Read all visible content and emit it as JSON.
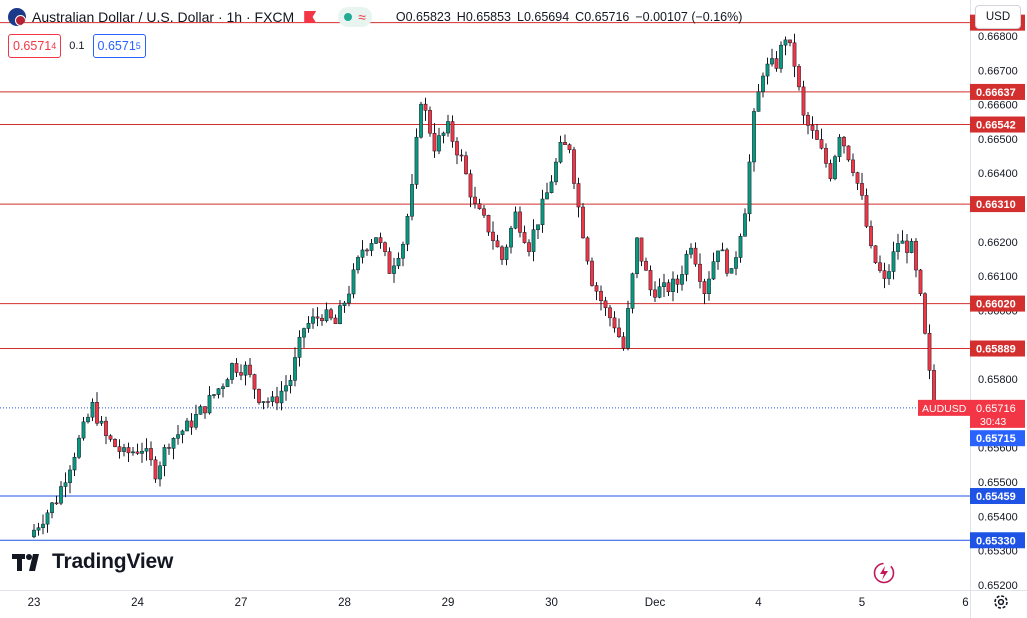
{
  "header": {
    "title": "Australian Dollar / U.S. Dollar · 1h · FXCM",
    "ohlc": [
      {
        "label": "O",
        "value": "0.65823"
      },
      {
        "label": "H",
        "value": "0.65853"
      },
      {
        "label": "L",
        "value": "0.65694"
      },
      {
        "label": "C",
        "value": "0.65716"
      }
    ],
    "change": "−0.00107 (−0.16%)"
  },
  "trade": {
    "sell_price": "0.6571",
    "sell_sup": "4",
    "spread": "0.1",
    "buy_price": "0.6571",
    "buy_sup": "5"
  },
  "currency": "USD",
  "branding": "TradingView",
  "icons": {
    "symbol_flags": "aud-usd-flag-icon",
    "alert": "flag-icon",
    "market_status": "market-open-icon",
    "wave": "wave-icon",
    "replay": "bolt-icon",
    "settings": "gear-icon"
  },
  "colors": {
    "up": "#089981",
    "down": "#f23645",
    "resistance": "#d32f2f",
    "support": "#1e53e5",
    "price_label": "#f23645",
    "bid_label": "#2962ff"
  },
  "chart_data": {
    "type": "candlestick",
    "symbol": "AUDUSD",
    "interval": "1h",
    "ylim": [
      0.65185,
      0.66905
    ],
    "y_ticks": [
      "0.66800",
      "0.66700",
      "0.66600",
      "0.66500",
      "0.66400",
      "0.66300",
      "0.66200",
      "0.66100",
      "0.66000",
      "0.65900",
      "0.65800",
      "0.65700",
      "0.65600",
      "0.65500",
      "0.65400",
      "0.65300",
      "0.65200"
    ],
    "x_ticks": [
      "23",
      "24",
      "27",
      "28",
      "29",
      "30",
      "Dec",
      "4",
      "5",
      "6"
    ],
    "x_tick_index": [
      0,
      23,
      46,
      69,
      92,
      115,
      138,
      161,
      184,
      207
    ],
    "n_candles": 200,
    "resistance_levels": [
      {
        "value": 0.66839,
        "label": "0.66839"
      },
      {
        "value": 0.66637,
        "label": "0.66637"
      },
      {
        "value": 0.66542,
        "label": "0.66542"
      },
      {
        "value": 0.6631,
        "label": "0.66310"
      },
      {
        "value": 0.6602,
        "label": "0.66020"
      },
      {
        "value": 0.65889,
        "label": "0.65889"
      }
    ],
    "support_levels": [
      {
        "value": 0.65459,
        "label": "0.65459"
      },
      {
        "value": 0.6533,
        "label": "0.65330"
      }
    ],
    "current_price": {
      "value": 0.65716,
      "label": "0.65716",
      "symbol": "AUDUSD",
      "countdown": "30:43"
    },
    "bid_price": {
      "value": 0.65715,
      "label": "0.65715"
    },
    "close_path": [
      [
        0,
        0.6536
      ],
      [
        5,
        0.6545
      ],
      [
        10,
        0.6562
      ],
      [
        13,
        0.6572
      ],
      [
        16,
        0.6563
      ],
      [
        20,
        0.6558
      ],
      [
        24,
        0.656
      ],
      [
        27,
        0.6553
      ],
      [
        30,
        0.6562
      ],
      [
        34,
        0.6566
      ],
      [
        38,
        0.6572
      ],
      [
        42,
        0.6579
      ],
      [
        44,
        0.6584
      ],
      [
        47,
        0.6583
      ],
      [
        50,
        0.6575
      ],
      [
        53,
        0.6573
      ],
      [
        57,
        0.658
      ],
      [
        60,
        0.6595
      ],
      [
        64,
        0.6599
      ],
      [
        67,
        0.6596
      ],
      [
        70,
        0.6606
      ],
      [
        73,
        0.6618
      ],
      [
        76,
        0.6622
      ],
      [
        79,
        0.6612
      ],
      [
        82,
        0.662
      ],
      [
        84,
        0.6635
      ],
      [
        86,
        0.6662
      ],
      [
        89,
        0.6648
      ],
      [
        92,
        0.6653
      ],
      [
        95,
        0.6644
      ],
      [
        98,
        0.663
      ],
      [
        101,
        0.6624
      ],
      [
        104,
        0.6615
      ],
      [
        107,
        0.6628
      ],
      [
        110,
        0.6619
      ],
      [
        114,
        0.6634
      ],
      [
        117,
        0.6647
      ],
      [
        119,
        0.6648
      ],
      [
        121,
        0.663
      ],
      [
        124,
        0.6609
      ],
      [
        127,
        0.66
      ],
      [
        129,
        0.6596
      ],
      [
        131,
        0.6589
      ],
      [
        134,
        0.662
      ],
      [
        137,
        0.6606
      ],
      [
        140,
        0.6606
      ],
      [
        143,
        0.6608
      ],
      [
        146,
        0.662
      ],
      [
        149,
        0.6606
      ],
      [
        152,
        0.6619
      ],
      [
        155,
        0.661
      ],
      [
        158,
        0.663
      ],
      [
        160,
        0.6656
      ],
      [
        162,
        0.667
      ],
      [
        165,
        0.6672
      ],
      [
        167,
        0.668
      ],
      [
        169,
        0.6672
      ],
      [
        171,
        0.6656
      ],
      [
        174,
        0.6649
      ],
      [
        177,
        0.664
      ],
      [
        179,
        0.6652
      ],
      [
        182,
        0.6642
      ],
      [
        184,
        0.6632
      ],
      [
        186,
        0.6617
      ],
      [
        189,
        0.6608
      ],
      [
        192,
        0.662
      ],
      [
        195,
        0.6618
      ],
      [
        197,
        0.6603
      ],
      [
        199,
        0.6581
      ],
      [
        200,
        0.65716
      ]
    ]
  }
}
